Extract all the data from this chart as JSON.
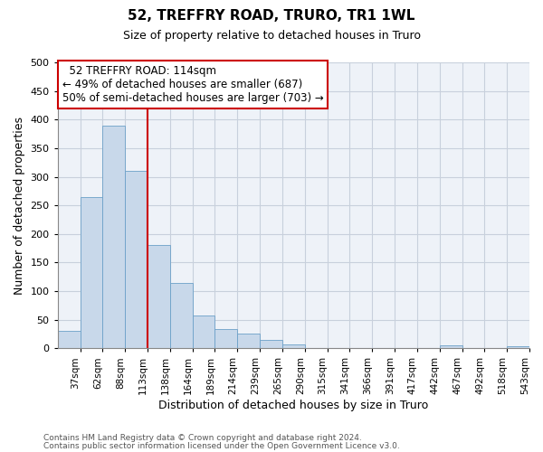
{
  "title": "52, TREFFRY ROAD, TRURO, TR1 1WL",
  "subtitle": "Size of property relative to detached houses in Truro",
  "xlabel": "Distribution of detached houses by size in Truro",
  "ylabel": "Number of detached properties",
  "bar_labels": [
    "37sqm",
    "62sqm",
    "88sqm",
    "113sqm",
    "138sqm",
    "164sqm",
    "189sqm",
    "214sqm",
    "239sqm",
    "265sqm",
    "290sqm",
    "315sqm",
    "341sqm",
    "366sqm",
    "391sqm",
    "417sqm",
    "442sqm",
    "467sqm",
    "492sqm",
    "518sqm",
    "543sqm"
  ],
  "bar_values": [
    30,
    265,
    390,
    310,
    180,
    115,
    58,
    33,
    25,
    15,
    7,
    0,
    0,
    0,
    0,
    0,
    0,
    5,
    0,
    0,
    3
  ],
  "bar_color": "#c8d8ea",
  "bar_edgecolor": "#6ca0c8",
  "vline_x_index": 3,
  "vline_color": "#cc0000",
  "ylim": [
    0,
    500
  ],
  "yticks": [
    0,
    50,
    100,
    150,
    200,
    250,
    300,
    350,
    400,
    450,
    500
  ],
  "annotation_title": "52 TREFFRY ROAD: 114sqm",
  "annotation_line1": "← 49% of detached houses are smaller (687)",
  "annotation_line2": "50% of semi-detached houses are larger (703) →",
  "annotation_box_facecolor": "#ffffff",
  "annotation_box_edgecolor": "#cc0000",
  "footer1": "Contains HM Land Registry data © Crown copyright and database right 2024.",
  "footer2": "Contains public sector information licensed under the Open Government Licence v3.0.",
  "background_color": "#ffffff",
  "plot_bg_color": "#eef2f8",
  "grid_color": "#c8d0dc"
}
